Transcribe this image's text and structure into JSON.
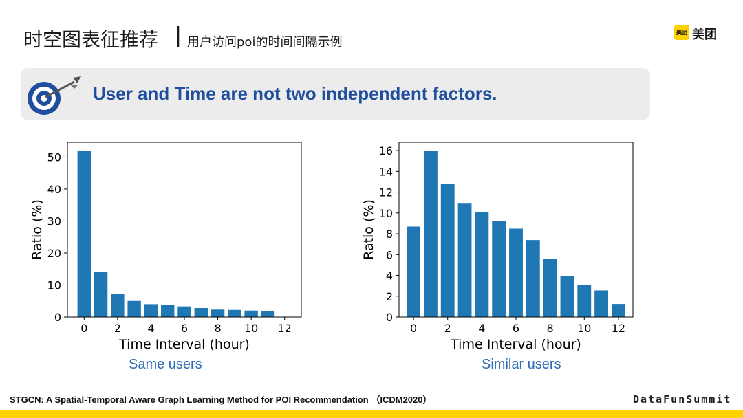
{
  "header": {
    "title": "时空图表征推荐",
    "separator": "|",
    "subtitle": "用户访问poi的时间间隔示例"
  },
  "logo": {
    "badge": "美团",
    "text": "美团"
  },
  "banner": {
    "text": "User and Time are not two independent factors."
  },
  "chart_data": [
    {
      "type": "bar",
      "x": [
        0,
        1,
        2,
        3,
        4,
        5,
        6,
        7,
        8,
        9,
        10,
        11
      ],
      "values": [
        52,
        14,
        7.2,
        5,
        4,
        3.8,
        3.3,
        2.8,
        2.3,
        2.2,
        2,
        1.9
      ],
      "xticks": [
        0,
        2,
        4,
        6,
        8,
        10,
        12
      ],
      "yticks": [
        0,
        10,
        20,
        30,
        40,
        50
      ],
      "xlim": [
        -1,
        13
      ],
      "ylim": [
        0,
        54.6
      ],
      "xlabel": "Time Interval (hour)",
      "ylabel": "Ratio (%)",
      "caption": "Same users",
      "bar_color": "#1F77B4"
    },
    {
      "type": "bar",
      "x": [
        0,
        1,
        2,
        3,
        4,
        5,
        6,
        7,
        8,
        9,
        10,
        11,
        12
      ],
      "values": [
        8.7,
        16,
        12.8,
        10.9,
        10.1,
        9.2,
        8.5,
        7.4,
        5.6,
        3.9,
        3.05,
        2.55,
        1.25
      ],
      "xticks": [
        0,
        2,
        4,
        6,
        8,
        10,
        12
      ],
      "yticks": [
        0,
        2,
        4,
        6,
        8,
        10,
        12,
        14,
        16
      ],
      "xlim": [
        -0.85,
        12.85
      ],
      "ylim": [
        0,
        16.8
      ],
      "xlabel": "Time Interval (hour)",
      "ylabel": "Ratio (%)",
      "caption": "Similar users",
      "bar_color": "#1F77B4"
    }
  ],
  "footnote": "STGCN: A Spatial-Temporal Aware Graph Learning Method for POI Recommendation （ICDM2020）",
  "brand": "DataFunSummit",
  "colors": {
    "accent": "#FFD100",
    "banner_text": "#1F4E9E",
    "caption": "#2E6CB3"
  }
}
